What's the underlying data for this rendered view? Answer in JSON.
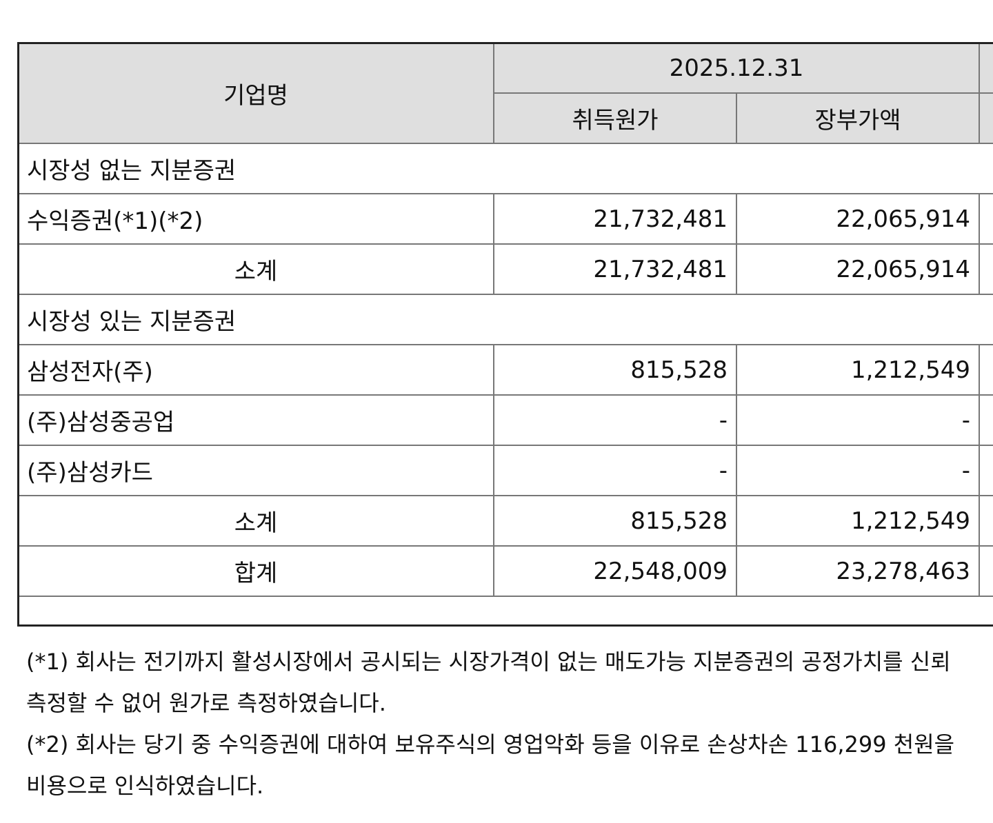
{
  "table": {
    "header": {
      "company": "기업명",
      "date": "2025.12.31",
      "acq_cost": "취득원가",
      "book_value": "장부가액"
    },
    "sections": [
      {
        "title": "시장성 없는 지분증권",
        "rows": [
          {
            "name": "수익증권(*1)(*2)",
            "acq": "21,732,481",
            "book": "22,065,914"
          }
        ],
        "subtotal": {
          "label": "소계",
          "acq": "21,732,481",
          "book": "22,065,914"
        }
      },
      {
        "title": "시장성 있는 지분증권",
        "rows": [
          {
            "name": "삼성전자(주)",
            "acq": "815,528",
            "book": "1,212,549"
          },
          {
            "name": "(주)삼성중공업",
            "acq": "-",
            "book": "-"
          },
          {
            "name": "(주)삼성카드",
            "acq": "-",
            "book": "-"
          }
        ],
        "subtotal": {
          "label": "소계",
          "acq": "815,528",
          "book": "1,212,549"
        }
      }
    ],
    "total": {
      "label": "합계",
      "acq": "22,548,009",
      "book": "23,278,463"
    }
  },
  "notes": [
    "(*1) 회사는 전기까지 활성시장에서 공시되는 시장가격이 없는 매도가능 지분증권의 공정가치를 신뢰",
    "측정할 수 없어 원가로 측정하였습니다.",
    "(*2) 회사는 당기 중 수익증권에 대하여 보유주식의 영업악화 등을 이유로 손상차손 116,299 천원을",
    "비용으로 인식하였습니다."
  ]
}
